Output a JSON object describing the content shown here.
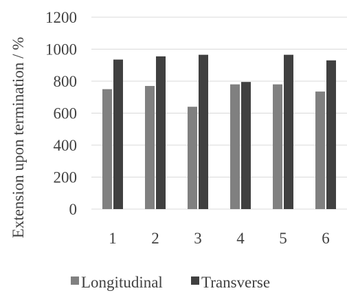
{
  "chart_data": {
    "type": "bar",
    "title": "",
    "xlabel": "",
    "ylabel": "Extension upon termination / %",
    "categories": [
      "1",
      "2",
      "3",
      "4",
      "5",
      "6"
    ],
    "series": [
      {
        "name": "Longitudinal",
        "color": "#808080",
        "values": [
          750,
          770,
          640,
          780,
          780,
          735
        ]
      },
      {
        "name": "Transverse",
        "color": "#404040",
        "values": [
          935,
          955,
          965,
          795,
          965,
          930
        ]
      }
    ],
    "ylim": [
      0,
      1200
    ],
    "yticks": [
      0,
      200,
      400,
      600,
      800,
      1000,
      1200
    ],
    "grid": true,
    "legend_position": "bottom"
  }
}
